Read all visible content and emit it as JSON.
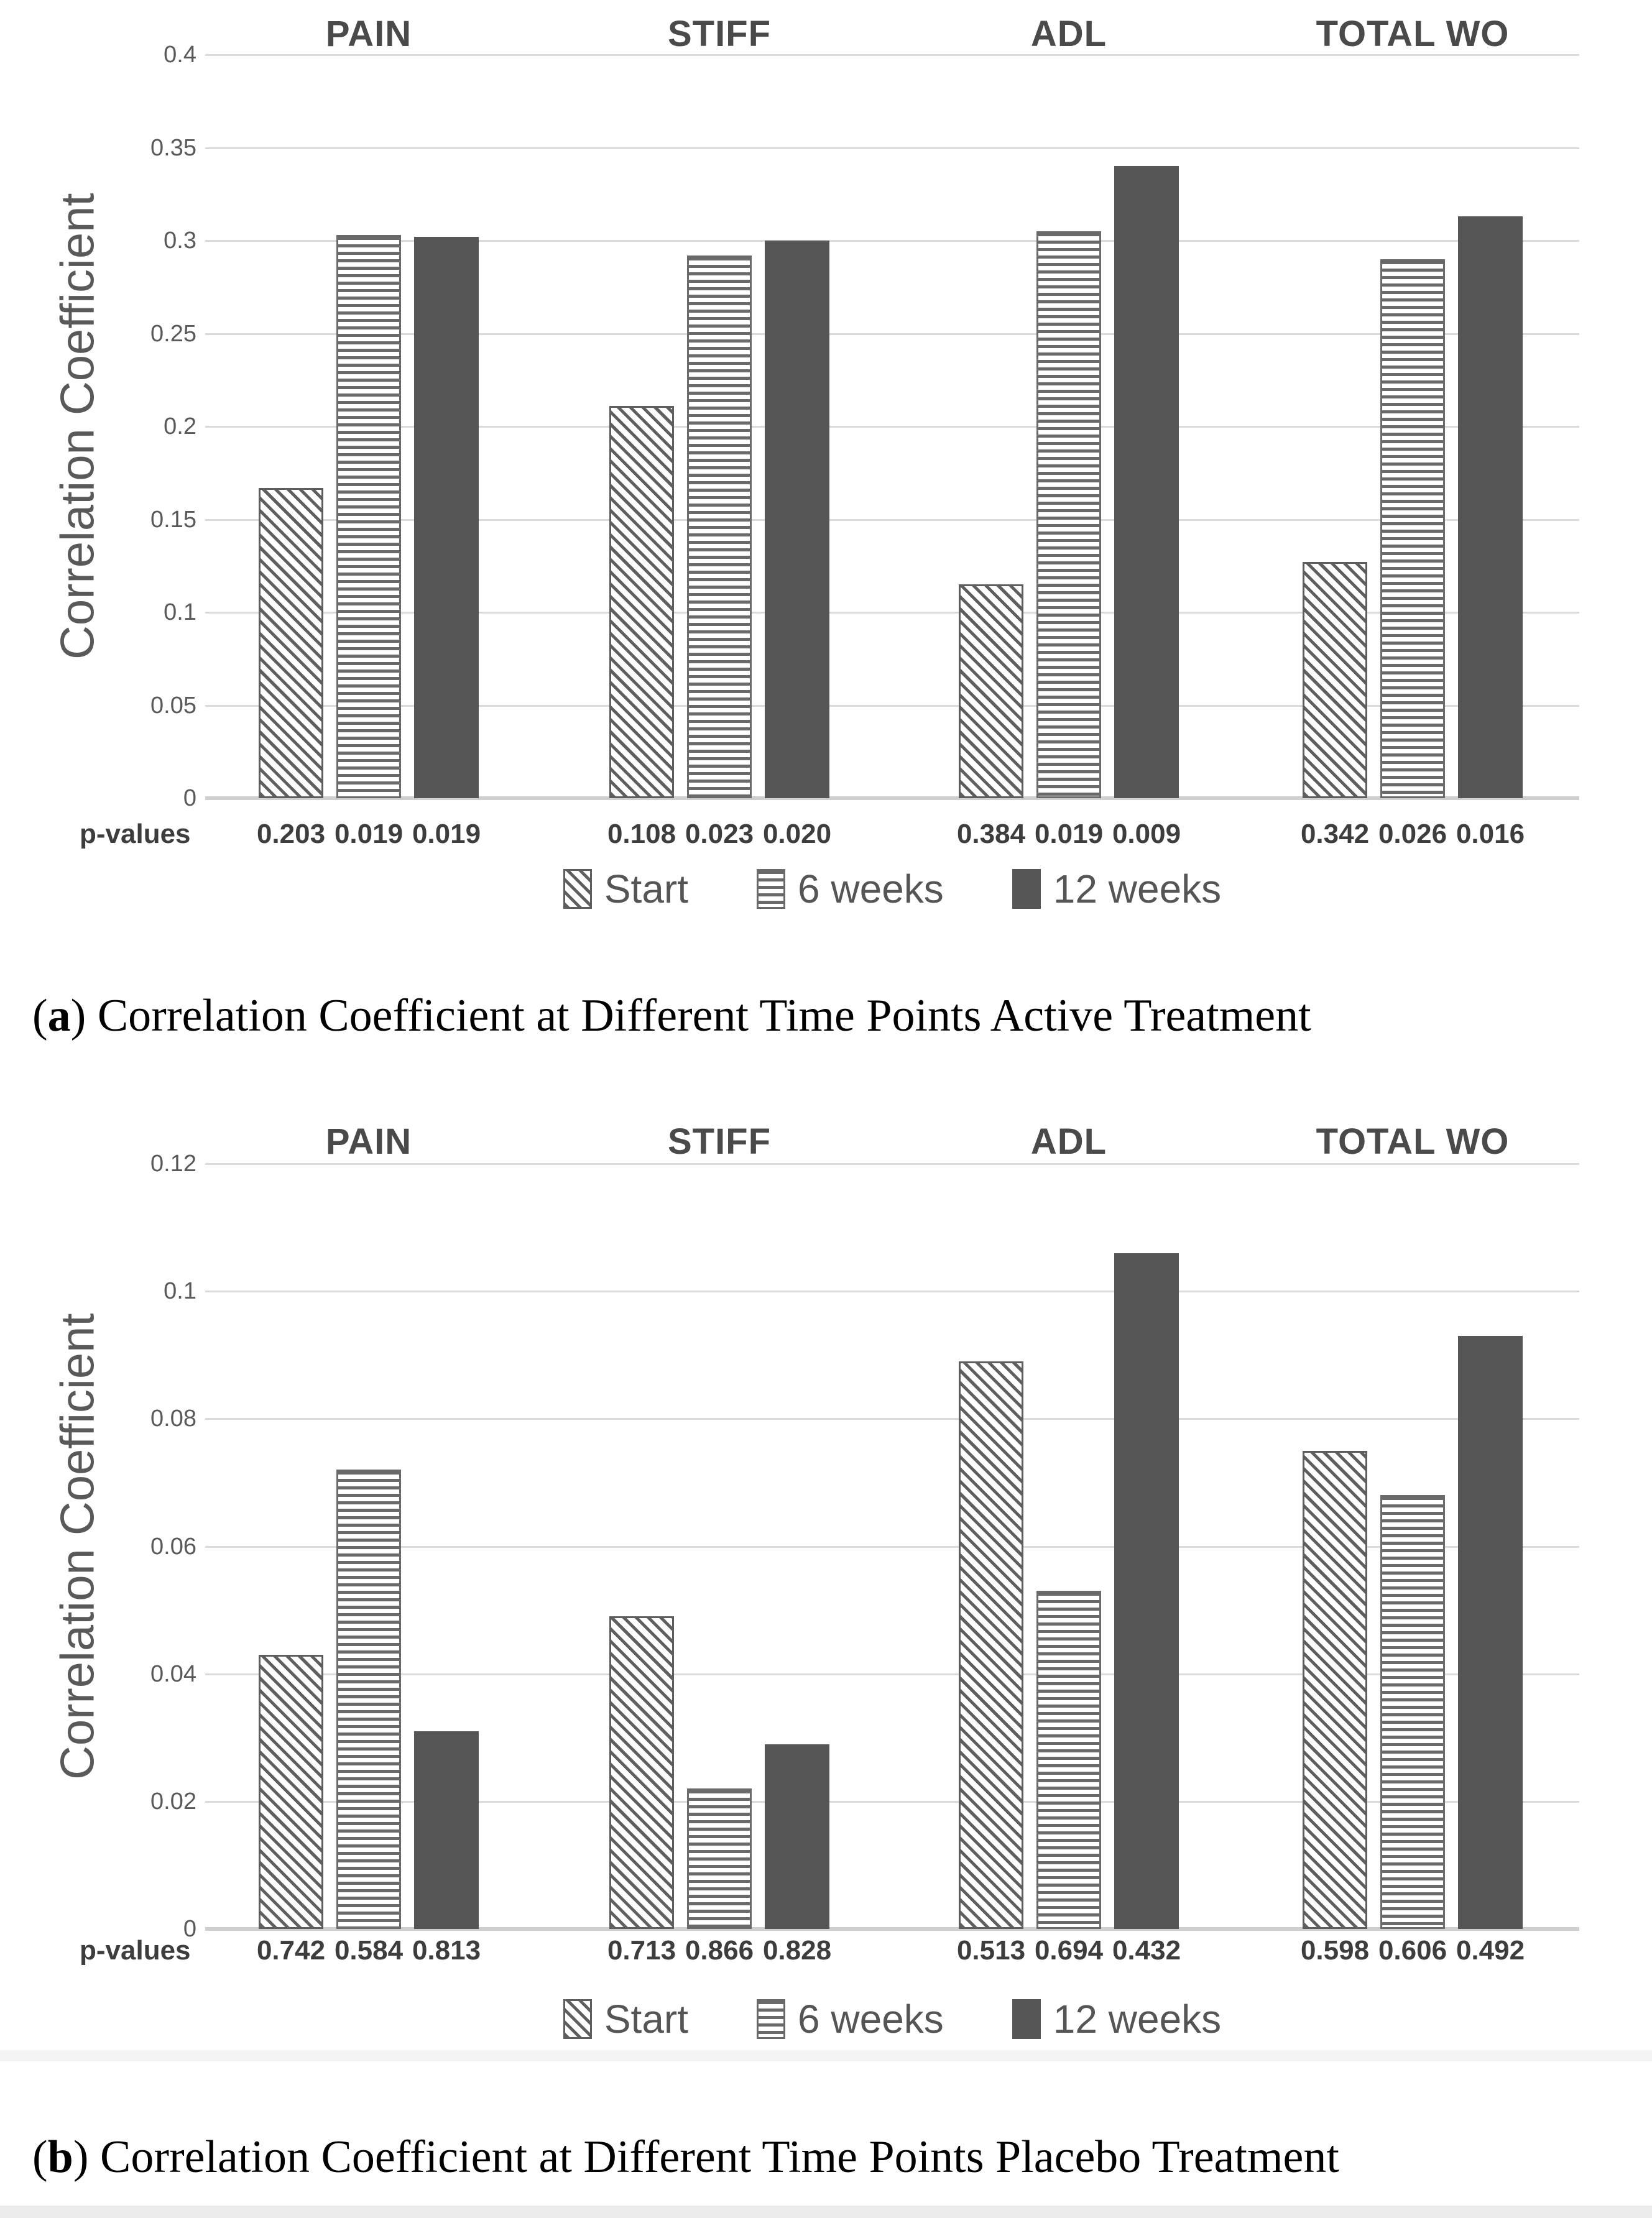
{
  "colors": {
    "bar_solid": "#565656",
    "hatch_line": "#5f5f5f",
    "gridline": "#dadada",
    "axis_text": "#595959",
    "group_title_text": "#4a4a4a",
    "p_value_text": "#3d3d3d",
    "legend_text": "#555555",
    "caption_text": "#000000"
  },
  "captions": {
    "a": {
      "open": "(",
      "letter": "a",
      "close": ") ",
      "text": "Correlation Coefficient at Different Time Points Active Treatment"
    },
    "b": {
      "open": "(",
      "letter": "b",
      "close": ") ",
      "text": "Correlation Coefficient at Different Time Points Placebo Treatment"
    }
  },
  "chart_data": [
    {
      "type": "bar",
      "title": "Correlation Coefficient at Different Time Points Active Treatment",
      "ylabel": "Correlation Coefficient",
      "xlabel": "",
      "ylim": [
        0,
        0.4
      ],
      "grid": true,
      "legend_position": "bottom",
      "ytick_labels": [
        "0.4",
        "0.35",
        "0.3",
        "0.25",
        "0.2",
        "0.15",
        "0.1",
        "0.05",
        "0"
      ],
      "categories": [
        "PAIN",
        "STIFF",
        "ADL",
        "TOTAL WO"
      ],
      "series": [
        {
          "name": "Start",
          "pattern": "diagonal-hatch",
          "values": [
            0.167,
            0.211,
            0.115,
            0.127
          ]
        },
        {
          "name": "6 weeks",
          "pattern": "horizontal-lines",
          "values": [
            0.303,
            0.292,
            0.305,
            0.29
          ]
        },
        {
          "name": "12 weeks",
          "pattern": "solid",
          "values": [
            0.302,
            0.3,
            0.34,
            0.313
          ]
        }
      ],
      "p_row_label": "p-values",
      "p_values": [
        [
          "0.203",
          "0.019",
          "0.019"
        ],
        [
          "0.108",
          "0.023",
          "0.020"
        ],
        [
          "0.384",
          "0.019",
          "0.009"
        ],
        [
          "0.342",
          "0.026",
          "0.016"
        ]
      ]
    },
    {
      "type": "bar",
      "title": "Correlation Coefficient at Different Time Points Placebo Treatment",
      "ylabel": "Correlation Coefficient",
      "xlabel": "",
      "ylim": [
        0,
        0.12
      ],
      "grid": true,
      "legend_position": "bottom",
      "ytick_labels": [
        "0.12",
        "0.1",
        "0.08",
        "0.06",
        "0.04",
        "0.02",
        "0"
      ],
      "categories": [
        "PAIN",
        "STIFF",
        "ADL",
        "TOTAL WO"
      ],
      "series": [
        {
          "name": "Start",
          "pattern": "diagonal-hatch",
          "values": [
            0.043,
            0.049,
            0.089,
            0.075
          ]
        },
        {
          "name": "6 weeks",
          "pattern": "horizontal-lines",
          "values": [
            0.072,
            0.022,
            0.053,
            0.068
          ]
        },
        {
          "name": "12 weeks",
          "pattern": "solid",
          "values": [
            0.031,
            0.029,
            0.106,
            0.093
          ]
        }
      ],
      "p_row_label": "p-values",
      "p_values": [
        [
          "0.742",
          "0.584",
          "0.813"
        ],
        [
          "0.713",
          "0.866",
          "0.828"
        ],
        [
          "0.513",
          "0.694",
          "0.432"
        ],
        [
          "0.598",
          "0.606",
          "0.492"
        ]
      ]
    }
  ]
}
